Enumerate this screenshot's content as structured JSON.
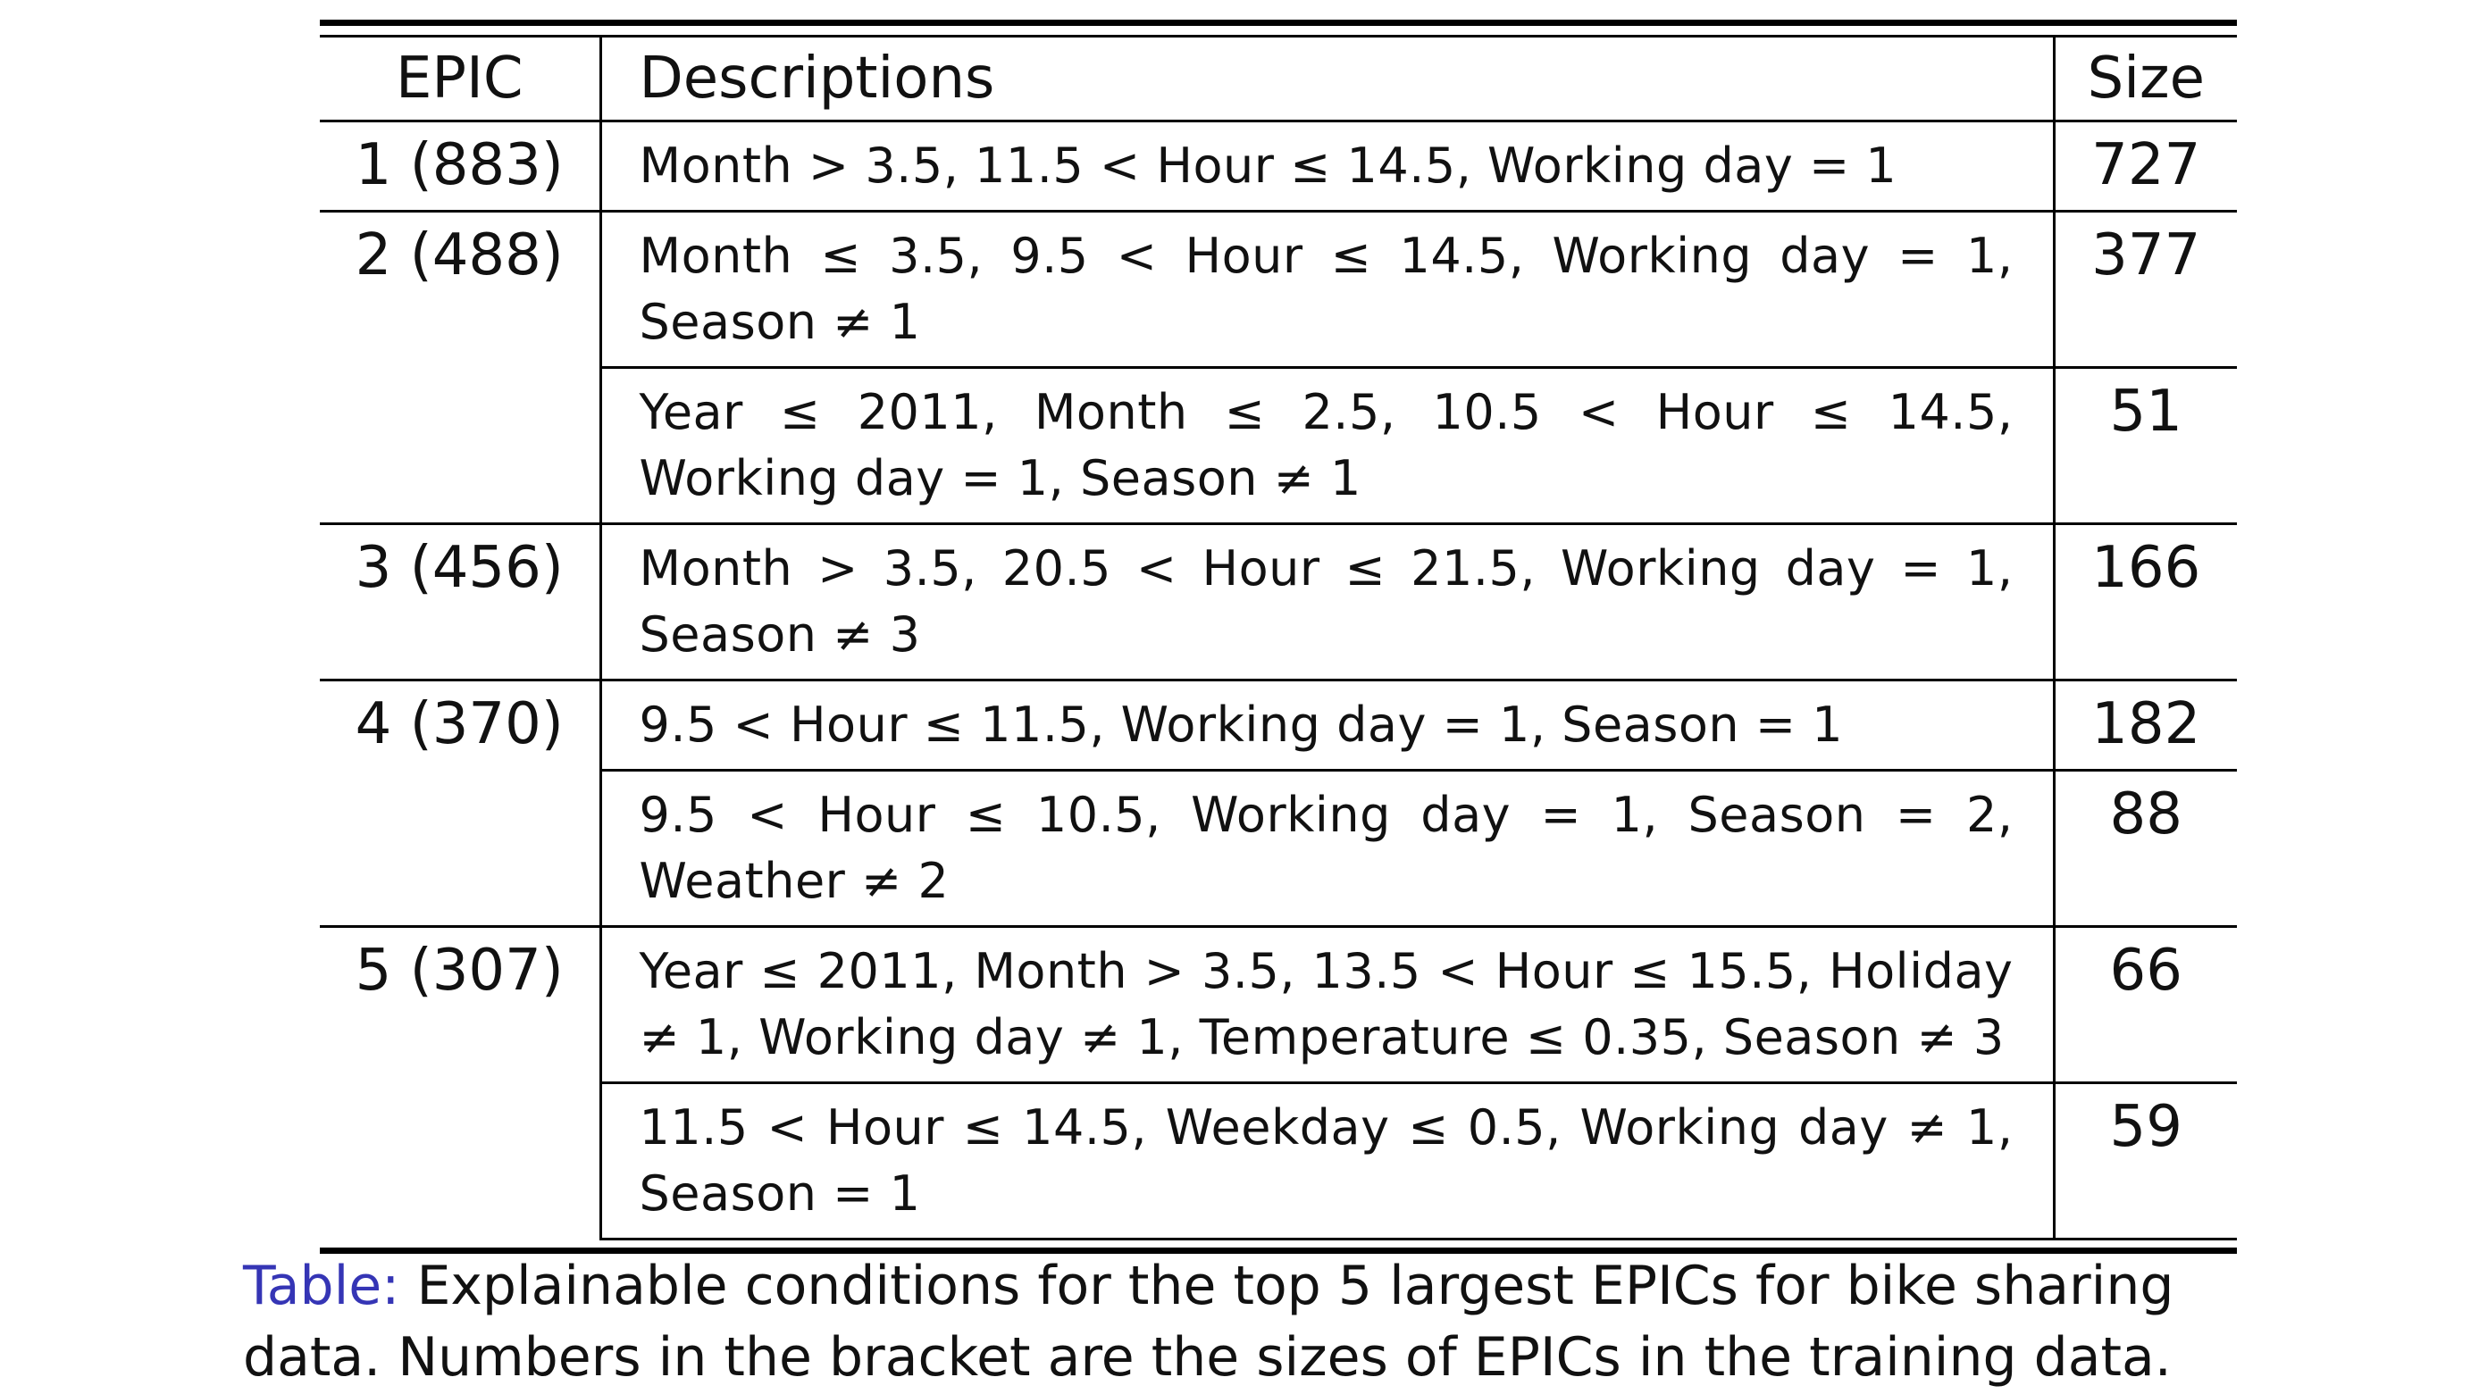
{
  "table": {
    "headers": {
      "epic": "EPIC",
      "descriptions": "Descriptions",
      "size": "Size"
    },
    "rows": [
      {
        "epic": "1 (883)",
        "description": "Month > 3.5, 11.5 < Hour ≤ 14.5, Working day = 1",
        "size": "727"
      },
      {
        "epic": "2 (488)",
        "description": "Month ≤ 3.5, 9.5 < Hour ≤ 14.5, Working day = 1, Season ≠ 1",
        "size": "377"
      },
      {
        "epic": "",
        "description": "Year ≤ 2011, Month ≤ 2.5, 10.5 < Hour ≤ 14.5, Working day = 1, Season ≠ 1",
        "size": "51"
      },
      {
        "epic": "3 (456)",
        "description": "Month > 3.5, 20.5 < Hour ≤ 21.5, Working day = 1, Season ≠ 3",
        "size": "166"
      },
      {
        "epic": "4 (370)",
        "description": "9.5 < Hour ≤ 11.5, Working day = 1, Season = 1",
        "size": "182"
      },
      {
        "epic": "",
        "description": "9.5 < Hour ≤ 10.5, Working day = 1, Season = 2, Weather ≠ 2",
        "size": "88"
      },
      {
        "epic": "5 (307)",
        "description": "Year ≤ 2011, Month > 3.5, 13.5 < Hour ≤ 15.5, Holiday ≠ 1, Working day ≠ 1, Temperature ≤ 0.35, Season ≠ 3",
        "size": "66"
      },
      {
        "epic": "",
        "description": "11.5 < Hour ≤ 14.5, Weekday ≤ 0.5, Working day ≠ 1, Season = 1",
        "size": "59"
      }
    ]
  },
  "caption": {
    "label": "Table:",
    "text": " Explainable conditions for the top 5 largest EPICs for bike sharing data. Numbers in the bracket are the sizes of EPICs in the training data."
  },
  "colors": {
    "caption_label": "#3535b5",
    "text": "#111111",
    "rules": "#000000"
  }
}
